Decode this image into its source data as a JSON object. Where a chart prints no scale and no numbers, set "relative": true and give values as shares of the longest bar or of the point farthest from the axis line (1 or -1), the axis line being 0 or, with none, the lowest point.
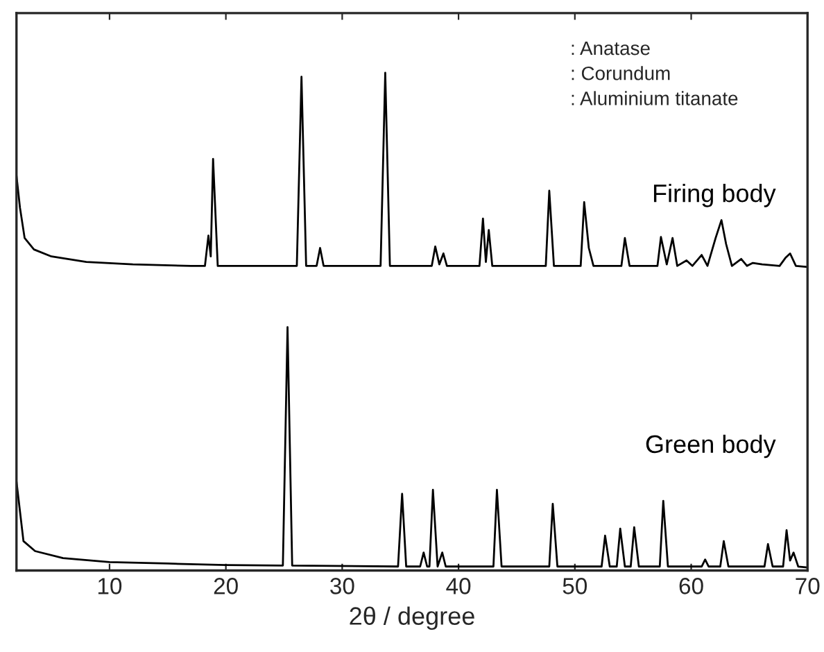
{
  "chart_data": {
    "type": "line",
    "relative": true,
    "xlabel": "2θ / degree",
    "xlim": [
      2,
      70
    ],
    "xticks": [
      10,
      20,
      30,
      40,
      50,
      60,
      70
    ],
    "legend": false,
    "grid": false,
    "annotations": [
      ": Anatase",
      ": Corundum",
      ": Aluminium titanate"
    ],
    "series": [
      {
        "name": "Firing body",
        "color": "#000000",
        "x": [
          2.0,
          2.3,
          2.7,
          3.5,
          5,
          8,
          12,
          17,
          18.2,
          18.5,
          18.7,
          18.9,
          19.3,
          26.1,
          26.5,
          26.9,
          27.8,
          28.1,
          28.4,
          33.3,
          33.7,
          34.1,
          37.7,
          38.0,
          38.35,
          38.7,
          39.0,
          41.8,
          42.1,
          42.35,
          42.6,
          42.9,
          47.5,
          47.8,
          48.2,
          50.5,
          50.8,
          51.2,
          51.6,
          54.0,
          54.3,
          54.7,
          57.1,
          57.4,
          57.9,
          58.4,
          58.8,
          59.6,
          60.1,
          60.9,
          61.4,
          62.1,
          62.6,
          63.0,
          63.5,
          64.3,
          64.8,
          65.3,
          66.1,
          67.6,
          68.1,
          68.5,
          69.0,
          70
        ],
        "values": [
          0.793,
          0.729,
          0.668,
          0.645,
          0.631,
          0.62,
          0.615,
          0.612,
          0.612,
          0.673,
          0.631,
          0.827,
          0.612,
          0.612,
          0.992,
          0.612,
          0.612,
          0.648,
          0.612,
          0.612,
          1.0,
          0.612,
          0.612,
          0.651,
          0.615,
          0.637,
          0.612,
          0.612,
          0.707,
          0.62,
          0.684,
          0.612,
          0.612,
          0.763,
          0.612,
          0.612,
          0.74,
          0.648,
          0.612,
          0.612,
          0.668,
          0.612,
          0.612,
          0.67,
          0.615,
          0.668,
          0.612,
          0.623,
          0.612,
          0.634,
          0.612,
          0.668,
          0.704,
          0.656,
          0.612,
          0.626,
          0.612,
          0.618,
          0.615,
          0.612,
          0.628,
          0.637,
          0.612,
          0.61
        ]
      },
      {
        "name": "Green body",
        "color": "#000000",
        "x": [
          2.0,
          2.6,
          3.6,
          6,
          10,
          15,
          20,
          24.9,
          25.3,
          25.7,
          34.8,
          35.15,
          35.5,
          36.7,
          37.0,
          37.3,
          37.5,
          37.8,
          38.2,
          38.6,
          38.9,
          43.0,
          43.3,
          43.7,
          47.8,
          48.1,
          48.5,
          52.3,
          52.6,
          53.0,
          53.6,
          53.9,
          54.3,
          54.8,
          55.1,
          55.5,
          57.3,
          57.6,
          58.0,
          60.9,
          61.2,
          61.5,
          62.5,
          62.8,
          63.2,
          66.3,
          66.6,
          67.0,
          67.9,
          68.2,
          68.5,
          68.8,
          69.2,
          70
        ],
        "values": [
          0.179,
          0.059,
          0.039,
          0.025,
          0.017,
          0.014,
          0.011,
          0.01,
          0.489,
          0.01,
          0.008,
          0.154,
          0.008,
          0.008,
          0.036,
          0.008,
          0.008,
          0.162,
          0.008,
          0.036,
          0.008,
          0.008,
          0.162,
          0.008,
          0.008,
          0.134,
          0.008,
          0.008,
          0.07,
          0.008,
          0.008,
          0.084,
          0.008,
          0.008,
          0.087,
          0.008,
          0.008,
          0.14,
          0.008,
          0.008,
          0.022,
          0.008,
          0.008,
          0.059,
          0.008,
          0.008,
          0.053,
          0.008,
          0.008,
          0.081,
          0.02,
          0.036,
          0.008,
          0.006
        ]
      }
    ]
  }
}
